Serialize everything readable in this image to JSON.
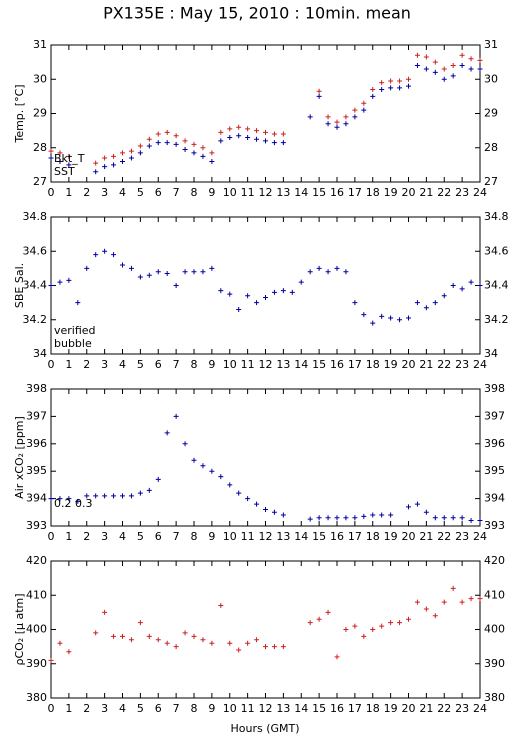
{
  "title": "PX135E : May 15, 2010 : 10min. mean",
  "xlabel": "Hours (GMT)",
  "chart_data": [
    {
      "type": "scatter",
      "ylabel": "Temp. [°C]",
      "x": [
        0,
        0.5,
        1,
        1.5,
        2,
        2.5,
        3,
        3.5,
        4,
        4.5,
        5,
        5.5,
        6,
        6.5,
        7,
        7.5,
        8,
        8.5,
        9,
        9.5,
        10,
        10.5,
        11,
        11.5,
        12,
        12.5,
        13,
        13.5,
        14,
        14.5,
        15,
        15.5,
        16,
        16.5,
        17,
        17.5,
        18,
        18.5,
        19,
        19.5,
        20,
        20.5,
        21,
        21.5,
        22,
        22.5,
        23,
        23.5,
        24
      ],
      "series": [
        {
          "name": "Bkt_T",
          "color": "#cc2020",
          "values": [
            27.9,
            27.85,
            27.75,
            null,
            null,
            27.55,
            27.7,
            27.75,
            27.85,
            27.9,
            28.05,
            28.25,
            28.4,
            28.45,
            28.35,
            28.2,
            28.1,
            28.0,
            27.85,
            28.45,
            28.55,
            28.6,
            28.55,
            28.5,
            28.45,
            28.4,
            28.4,
            null,
            null,
            null,
            29.65,
            28.9,
            28.75,
            28.9,
            29.1,
            29.3,
            29.7,
            29.9,
            29.95,
            29.95,
            30.0,
            30.7,
            30.65,
            30.5,
            30.3,
            30.4,
            30.7,
            30.6,
            30.55
          ]
        },
        {
          "name": "SST",
          "color": "#0000a0",
          "values": [
            27.7,
            27.6,
            27.5,
            null,
            null,
            27.3,
            27.45,
            27.5,
            27.6,
            27.7,
            27.85,
            28.05,
            28.15,
            28.15,
            28.1,
            27.95,
            27.85,
            27.75,
            27.6,
            28.2,
            28.3,
            28.35,
            28.3,
            28.25,
            28.2,
            28.15,
            28.15,
            null,
            null,
            28.9,
            29.5,
            28.7,
            28.6,
            28.7,
            28.9,
            29.1,
            29.5,
            29.7,
            29.75,
            29.75,
            29.8,
            30.4,
            30.3,
            30.2,
            30.0,
            30.1,
            30.4,
            30.3,
            30.3
          ]
        }
      ],
      "xlim": [
        0,
        24
      ],
      "xticks": [
        0,
        1,
        2,
        3,
        4,
        5,
        6,
        7,
        8,
        9,
        10,
        11,
        12,
        13,
        14,
        15,
        16,
        17,
        18,
        19,
        20,
        21,
        22,
        23,
        24
      ],
      "ylim": [
        27,
        31
      ],
      "yticks": [
        27,
        28,
        29,
        30,
        31
      ]
    },
    {
      "type": "scatter",
      "ylabel": "SBE Sal.",
      "x": [
        0,
        0.5,
        1,
        1.5,
        2,
        2.5,
        3,
        3.5,
        4,
        4.5,
        5,
        5.5,
        6,
        6.5,
        7,
        7.5,
        8,
        8.5,
        9,
        9.5,
        10,
        10.5,
        11,
        11.5,
        12,
        12.5,
        13,
        13.5,
        14,
        14.5,
        15,
        15.5,
        16,
        16.5,
        17,
        17.5,
        18,
        18.5,
        19,
        19.5,
        20,
        20.5,
        21,
        21.5,
        22,
        22.5,
        23,
        23.5,
        24
      ],
      "series": [
        {
          "name": "verified",
          "color": "#0000a0",
          "values": [
            34.4,
            34.42,
            34.43,
            34.3,
            34.5,
            34.58,
            34.6,
            34.58,
            34.52,
            34.5,
            34.45,
            34.46,
            34.48,
            34.47,
            34.4,
            34.48,
            34.48,
            34.48,
            34.5,
            34.37,
            34.35,
            34.26,
            34.34,
            34.3,
            34.33,
            34.36,
            34.37,
            34.36,
            34.42,
            34.48,
            34.5,
            34.48,
            34.5,
            34.48,
            34.3,
            34.23,
            34.18,
            34.22,
            34.21,
            34.2,
            34.21,
            34.3,
            34.27,
            34.3,
            34.34,
            34.4,
            34.38,
            34.42,
            34.4
          ]
        },
        {
          "name": "bubble",
          "color": "#cc00cc",
          "values": [
            null,
            null,
            null,
            null,
            null,
            null,
            null,
            null,
            null,
            null,
            null,
            null,
            null,
            null,
            null,
            null,
            null,
            null,
            null,
            null,
            null,
            null,
            null,
            null,
            null,
            null,
            null,
            null,
            null,
            null,
            null,
            null,
            null,
            null,
            null,
            null,
            null,
            null,
            null,
            null,
            null,
            null,
            null,
            null,
            null,
            null,
            null,
            null,
            null
          ]
        }
      ],
      "xlim": [
        0,
        24
      ],
      "xticks": [
        0,
        1,
        2,
        3,
        4,
        5,
        6,
        7,
        8,
        9,
        10,
        11,
        12,
        13,
        14,
        15,
        16,
        17,
        18,
        19,
        20,
        21,
        22,
        23,
        24
      ],
      "ylim": [
        34,
        34.8
      ],
      "yticks": [
        34,
        34.2,
        34.4,
        34.6,
        34.8
      ]
    },
    {
      "type": "scatter",
      "ylabel": "Air xCO₂ [ppm]",
      "annotation": "0.2 0.3",
      "x": [
        0,
        0.5,
        1,
        1.5,
        2,
        2.5,
        3,
        3.5,
        4,
        4.5,
        5,
        5.5,
        6,
        6.5,
        7,
        7.5,
        8,
        8.5,
        9,
        9.5,
        10,
        10.5,
        11,
        11.5,
        12,
        12.5,
        13,
        13.5,
        14,
        14.5,
        15,
        15.5,
        16,
        16.5,
        17,
        17.5,
        18,
        18.5,
        19,
        19.5,
        20,
        20.5,
        21,
        21.5,
        22,
        22.5,
        23,
        23.5,
        24
      ],
      "series": [
        {
          "name": "xCO2",
          "color": "#0000a0",
          "values": [
            394.0,
            394.0,
            394.0,
            393.9,
            394.1,
            394.1,
            394.1,
            394.1,
            394.1,
            394.1,
            394.2,
            394.3,
            394.7,
            396.4,
            397.0,
            396.0,
            395.4,
            395.2,
            395.0,
            394.8,
            394.5,
            394.2,
            394.0,
            393.8,
            393.6,
            393.5,
            393.4,
            null,
            null,
            393.25,
            393.3,
            393.3,
            393.3,
            393.3,
            393.3,
            393.35,
            393.4,
            393.4,
            393.4,
            null,
            393.7,
            393.8,
            393.5,
            393.3,
            393.3,
            393.3,
            393.3,
            393.2,
            393.2
          ]
        }
      ],
      "xlim": [
        0,
        24
      ],
      "xticks": [
        0,
        1,
        2,
        3,
        4,
        5,
        6,
        7,
        8,
        9,
        10,
        11,
        12,
        13,
        14,
        15,
        16,
        17,
        18,
        19,
        20,
        21,
        22,
        23,
        24
      ],
      "ylim": [
        393,
        398
      ],
      "yticks": [
        393,
        394,
        395,
        396,
        397,
        398
      ]
    },
    {
      "type": "scatter",
      "ylabel": "ρCO₂ [μ atm]",
      "x": [
        0,
        0.5,
        1,
        1.5,
        2,
        2.5,
        3,
        3.5,
        4,
        4.5,
        5,
        5.5,
        6,
        6.5,
        7,
        7.5,
        8,
        8.5,
        9,
        9.5,
        10,
        10.5,
        11,
        11.5,
        12,
        12.5,
        13,
        13.5,
        14,
        14.5,
        15,
        15.5,
        16,
        16.5,
        17,
        17.5,
        18,
        18.5,
        19,
        19.5,
        20,
        20.5,
        21,
        21.5,
        22,
        22.5,
        23,
        23.5,
        24
      ],
      "series": [
        {
          "name": "pCO2",
          "color": "#cc2020",
          "values": [
            391,
            396,
            393.5,
            null,
            null,
            399,
            405,
            398,
            398,
            397,
            402,
            398,
            397,
            396,
            395,
            399,
            398,
            397,
            396,
            407,
            396,
            394,
            396,
            397,
            395,
            395,
            395,
            null,
            null,
            402,
            403,
            405,
            392,
            400,
            401,
            398,
            400,
            401,
            402,
            402,
            403,
            408,
            406,
            404,
            408,
            412,
            408,
            409,
            409
          ]
        }
      ],
      "xlim": [
        0,
        24
      ],
      "xticks": [
        0,
        1,
        2,
        3,
        4,
        5,
        6,
        7,
        8,
        9,
        10,
        11,
        12,
        13,
        14,
        15,
        16,
        17,
        18,
        19,
        20,
        21,
        22,
        23,
        24
      ],
      "ylim": [
        380,
        420
      ],
      "yticks": [
        380,
        390,
        400,
        410,
        420
      ]
    }
  ]
}
